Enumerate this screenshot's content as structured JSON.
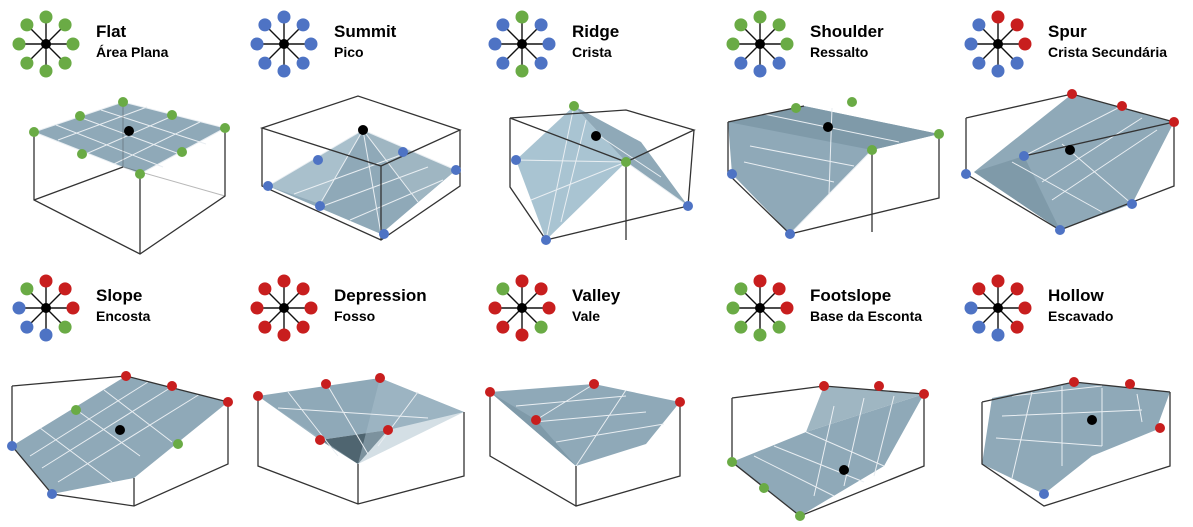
{
  "colors": {
    "lower": "#4e73c4",
    "equal": "#6aab45",
    "higher": "#c81e1e",
    "center": "#000000",
    "surface": "#8fa9b8",
    "surface_dark": "#6b8694",
    "grid_line": "#e9eef2",
    "box_line": "#333333"
  },
  "forms": [
    {
      "title": "Flat",
      "subtitle": "Área Plana",
      "pattern": [
        "equal",
        "equal",
        "equal",
        "equal",
        "equal",
        "equal",
        "equal",
        "equal"
      ]
    },
    {
      "title": "Summit",
      "subtitle": "Pico",
      "pattern": [
        "lower",
        "lower",
        "lower",
        "lower",
        "lower",
        "lower",
        "lower",
        "lower"
      ]
    },
    {
      "title": "Ridge",
      "subtitle": "Crista",
      "pattern": [
        "equal",
        "lower",
        "lower",
        "lower",
        "equal",
        "lower",
        "lower",
        "lower"
      ]
    },
    {
      "title": "Shoulder",
      "subtitle": "Ressalto",
      "pattern": [
        "equal",
        "equal",
        "equal",
        "lower",
        "lower",
        "lower",
        "equal",
        "equal"
      ]
    },
    {
      "title": "Spur",
      "subtitle": "Crista Secundária",
      "pattern": [
        "higher",
        "higher",
        "higher",
        "lower",
        "lower",
        "lower",
        "lower",
        "lower"
      ]
    },
    {
      "title": "Slope",
      "subtitle": "Encosta",
      "pattern": [
        "higher",
        "higher",
        "higher",
        "equal",
        "lower",
        "lower",
        "lower",
        "equal"
      ]
    },
    {
      "title": "Depression",
      "subtitle": "Fosso",
      "pattern": [
        "higher",
        "higher",
        "higher",
        "higher",
        "higher",
        "higher",
        "higher",
        "higher"
      ]
    },
    {
      "title": "Valley",
      "subtitle": "Vale",
      "pattern": [
        "higher",
        "higher",
        "higher",
        "equal",
        "higher",
        "higher",
        "higher",
        "equal"
      ]
    },
    {
      "title": "Footslope",
      "subtitle": "Base da Esconta",
      "pattern": [
        "higher",
        "higher",
        "higher",
        "equal",
        "equal",
        "equal",
        "equal",
        "equal"
      ]
    },
    {
      "title": "Hollow",
      "subtitle": "Escavado",
      "pattern": [
        "higher",
        "higher",
        "higher",
        "higher",
        "lower",
        "lower",
        "lower",
        "higher"
      ]
    }
  ]
}
